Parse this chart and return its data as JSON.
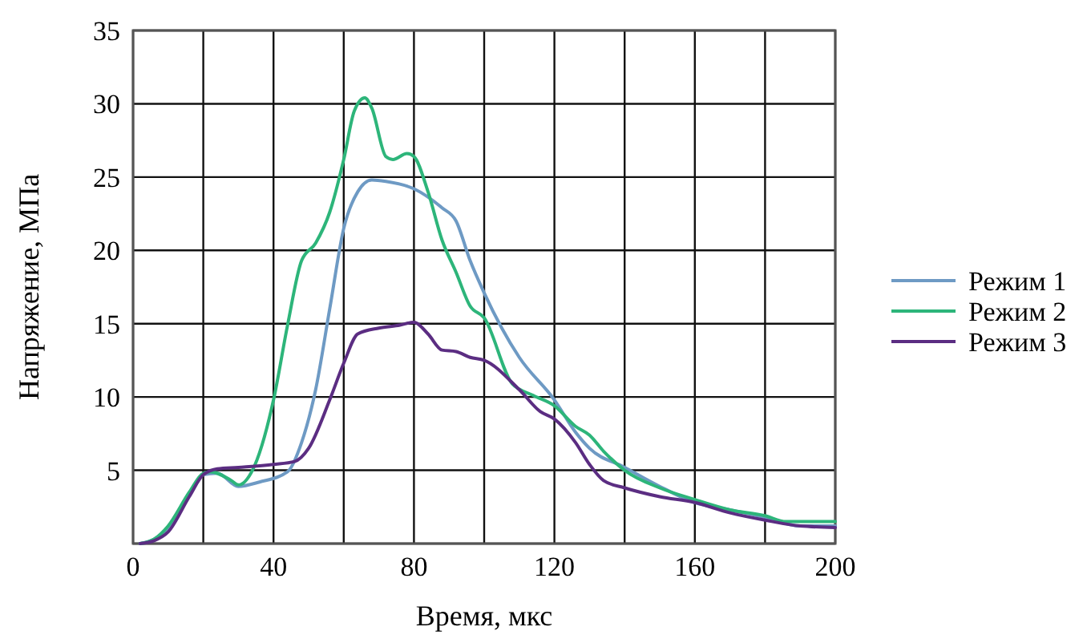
{
  "chart_data": {
    "type": "line",
    "xlabel": "Время, мкс",
    "ylabel": "Напряжение, МПа",
    "xlim": [
      0,
      200
    ],
    "ylim": [
      0,
      35
    ],
    "xticks": [
      0,
      {
        "value": 20,
        "label": null
      },
      40,
      {
        "value": 60,
        "label": null
      },
      80,
      {
        "value": 100,
        "label": null
      },
      120,
      {
        "value": 140,
        "label": null
      },
      160,
      {
        "value": 180,
        "label": null
      },
      200
    ],
    "yticks": [
      {
        "value": 0,
        "label": null
      },
      5,
      10,
      15,
      20,
      25,
      30,
      35
    ],
    "grid": true,
    "legend": "right",
    "marker": "none",
    "line_style": "solid",
    "series": [
      {
        "name": "Режим 1",
        "color": "#6e9ac4",
        "x": [
          2,
          6,
          10,
          16,
          20,
          24,
          30,
          36,
          44,
          48,
          52,
          56,
          60,
          64,
          68,
          72,
          80,
          88,
          92,
          96,
          100,
          110,
          120,
          126,
          130,
          140,
          150,
          160,
          170,
          180,
          190,
          200
        ],
        "values": [
          0,
          0.3,
          1.1,
          3.3,
          4.7,
          4.8,
          3.9,
          4.2,
          4.9,
          6.9,
          10.5,
          16,
          21.5,
          24,
          24.8,
          24.7,
          24.2,
          22.9,
          22,
          19.3,
          17.1,
          12.7,
          9.8,
          7.6,
          6.5,
          5.2,
          3.9,
          2.8,
          2.3,
          1.8,
          1.2,
          1.2
        ]
      },
      {
        "name": "Режим 2",
        "color": "#2db57a",
        "x": [
          2,
          6,
          10,
          16,
          20,
          22,
          28,
          30,
          34,
          40,
          44,
          48,
          52,
          56,
          60,
          63,
          66,
          68,
          72,
          74,
          78,
          80,
          84,
          88,
          92,
          96,
          100,
          108,
          114,
          120,
          126,
          130,
          134,
          140,
          150,
          160,
          170,
          180,
          186,
          200
        ],
        "values": [
          0,
          0.3,
          1.2,
          3.5,
          4.8,
          4.9,
          4.3,
          4.0,
          5.0,
          9.8,
          14.9,
          19.3,
          20.5,
          22.6,
          26.2,
          29.5,
          30.4,
          29.7,
          26.4,
          26.2,
          26.6,
          26.4,
          24,
          20.7,
          18.5,
          16.2,
          15.4,
          10.9,
          10.1,
          9.4,
          8.0,
          7.4,
          6.3,
          5.0,
          3.8,
          3.0,
          2.3,
          1.9,
          1.5,
          1.5
        ]
      },
      {
        "name": "Режим 3",
        "color": "#5b2d82",
        "x": [
          2,
          6,
          10,
          16,
          20,
          24,
          30,
          40,
          46,
          50,
          56,
          60,
          64,
          70,
          76,
          80,
          84,
          88,
          92,
          96,
          100,
          110,
          116,
          120,
          126,
          130,
          134,
          140,
          150,
          160,
          170,
          180,
          190,
          200
        ],
        "values": [
          0,
          0.2,
          0.8,
          3.2,
          4.7,
          5.1,
          5.2,
          5.4,
          5.6,
          6.5,
          9.8,
          12.3,
          14.3,
          14.7,
          14.9,
          15.1,
          14.3,
          13.2,
          13.1,
          12.7,
          12.5,
          10.5,
          9,
          8.5,
          6.9,
          5.4,
          4.3,
          3.8,
          3.2,
          2.8,
          2.1,
          1.6,
          1.2,
          1.1
        ]
      }
    ]
  }
}
